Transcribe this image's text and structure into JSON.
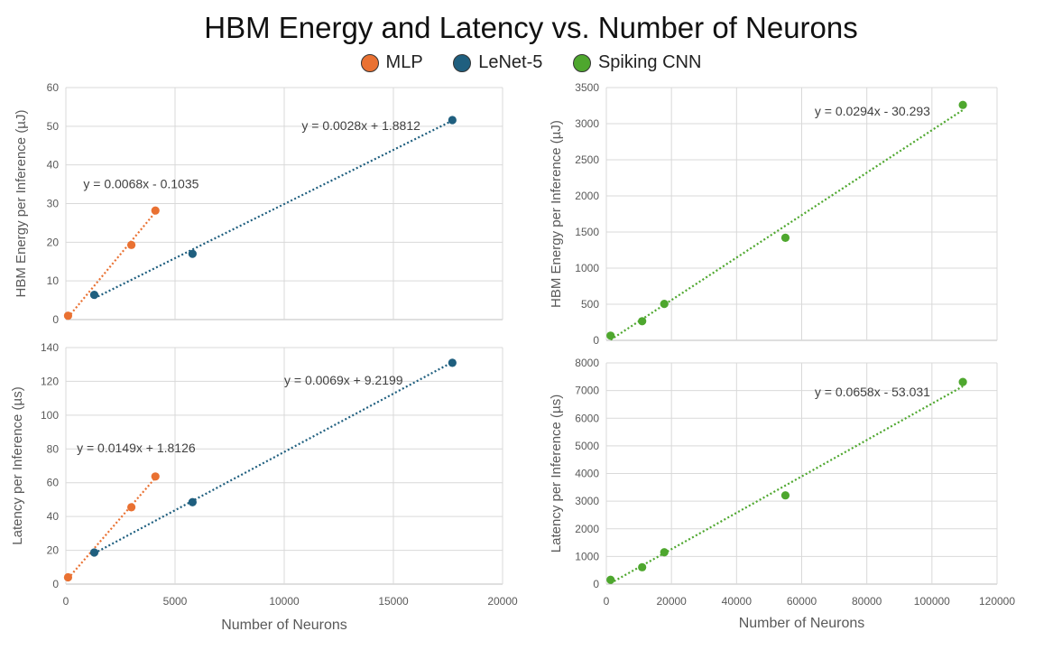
{
  "title": "HBM Energy and Latency vs. Number of Neurons",
  "legend": [
    {
      "label": "MLP",
      "color": "#E97132"
    },
    {
      "label": "LeNet-5",
      "color": "#1F5F7F"
    },
    {
      "label": "Spiking CNN",
      "color": "#4EA72E"
    }
  ],
  "chart_data": [
    {
      "type": "scatter",
      "id": "energy-small",
      "xlim": [
        0,
        20000
      ],
      "xstep": 5000,
      "ylim": [
        0,
        60
      ],
      "ystep": 10,
      "ylabel": "HBM Energy per Inference (µJ)",
      "xlabel": "",
      "show_xticks": false,
      "series": [
        {
          "name": "MLP",
          "color": "#E97132",
          "x": [
            100,
            3000,
            4100
          ],
          "y": [
            1,
            19.3,
            28.2
          ],
          "trend": {
            "slope": 0.0068,
            "intercept": -0.1035,
            "x0": 100,
            "x1": 4100
          },
          "equation": "y = 0.0068x - 0.1035",
          "eq_x": 800,
          "eq_y": 34
        },
        {
          "name": "LeNet-5",
          "color": "#1F5F7F",
          "x": [
            1300,
            5800,
            17700
          ],
          "y": [
            6.4,
            17,
            51.6
          ],
          "trend": {
            "slope": 0.0028,
            "intercept": 1.8812,
            "x0": 1300,
            "x1": 17700
          },
          "equation": "y = 0.0028x + 1.8812",
          "eq_x": 10800,
          "eq_y": 49
        }
      ]
    },
    {
      "type": "scatter",
      "id": "latency-small",
      "xlim": [
        0,
        20000
      ],
      "xstep": 5000,
      "ylim": [
        0,
        140
      ],
      "ystep": 20,
      "ylabel": "Latency per Inference (µs)",
      "xlabel": "Number of Neurons",
      "show_xticks": true,
      "series": [
        {
          "name": "MLP",
          "color": "#E97132",
          "x": [
            100,
            3000,
            4100
          ],
          "y": [
            4,
            45.5,
            63.7
          ],
          "trend": {
            "slope": 0.0149,
            "intercept": 1.8126,
            "x0": 100,
            "x1": 4100
          },
          "equation": "y = 0.0149x + 1.8126",
          "eq_x": 500,
          "eq_y": 78
        },
        {
          "name": "LeNet-5",
          "color": "#1F5F7F",
          "x": [
            1300,
            5800,
            17700
          ],
          "y": [
            18.7,
            48.5,
            131
          ],
          "trend": {
            "slope": 0.0069,
            "intercept": 9.2199,
            "x0": 1300,
            "x1": 17700
          },
          "equation": "y = 0.0069x + 9.2199",
          "eq_x": 10000,
          "eq_y": 118
        }
      ]
    },
    {
      "type": "scatter",
      "id": "energy-large",
      "xlim": [
        0,
        120000
      ],
      "xstep": 20000,
      "ylim": [
        0,
        3500
      ],
      "ystep": 500,
      "ylabel": "HBM Energy per Inference (µJ)",
      "xlabel": "",
      "show_xticks": false,
      "series": [
        {
          "name": "Spiking CNN",
          "color": "#4EA72E",
          "x": [
            1300,
            11000,
            17800,
            55000,
            109500
          ],
          "y": [
            65,
            265,
            505,
            1420,
            3260
          ],
          "trend": {
            "slope": 0.0294,
            "intercept": -30.293,
            "x0": 1300,
            "x1": 109500
          },
          "equation": "y = 0.0294x - 30.293",
          "eq_x": 64000,
          "eq_y": 3110
        }
      ]
    },
    {
      "type": "scatter",
      "id": "latency-large",
      "xlim": [
        0,
        120000
      ],
      "xstep": 20000,
      "ylim": [
        0,
        8000
      ],
      "ystep": 1000,
      "ylabel": "Latency per Inference (µs)",
      "xlabel": "Number of Neurons",
      "show_xticks": true,
      "series": [
        {
          "name": "Spiking CNN",
          "color": "#4EA72E",
          "x": [
            1300,
            11000,
            17800,
            55000,
            109500
          ],
          "y": [
            155,
            610,
            1150,
            3210,
            7310
          ],
          "trend": {
            "slope": 0.0658,
            "intercept": -53.031,
            "x0": 1300,
            "x1": 109500
          },
          "equation": "y = 0.0658x - 53.031",
          "eq_x": 64000,
          "eq_y": 6800
        }
      ]
    }
  ]
}
